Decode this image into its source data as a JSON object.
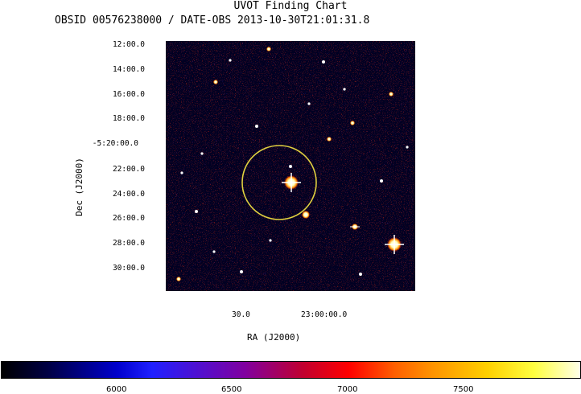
{
  "header": {
    "title": "UVOT Finding Chart",
    "subtitle": "OBSID 00576238000 / DATE-OBS 2013-10-30T21:01:31.8"
  },
  "axes": {
    "ylabel": "Dec (J2000)",
    "xlabel": "RA (J2000)",
    "yticks": [
      "12:00.0",
      "14:00.0",
      "16:00.0",
      "18:00.0",
      "-5:20:00.0",
      "22:00.0",
      "24:00.0",
      "26:00.0",
      "28:00.0",
      "30:00.0"
    ],
    "xticks": [
      "30.0",
      "23:00:00.0"
    ]
  },
  "colorbar": {
    "ticks": [
      "6000",
      "6500",
      "7000",
      "7500"
    ]
  },
  "colors": {
    "circle": "#e0d040",
    "background_blue": "#2a2ae0"
  }
}
